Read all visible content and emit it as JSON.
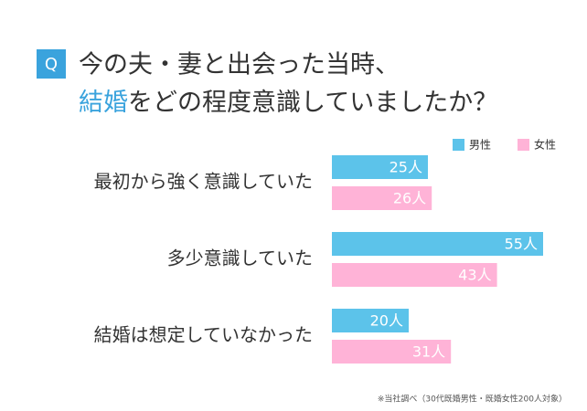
{
  "chart_data": {
    "type": "hbar",
    "badge": "Q",
    "title": [
      "今の夫・妻と出会った当時、",
      "結婚",
      "をどの程度意識していましたか？"
    ],
    "categories": [
      "最初から強く意識していた",
      "多少意識していた",
      "結婚は想定していなかった"
    ],
    "series": [
      {
        "name": "男性",
        "color": "#5cc3ea",
        "values": [
          25,
          55,
          20
        ],
        "value_labels": [
          "25人",
          "55人",
          "20人"
        ]
      },
      {
        "name": "女性",
        "color": "#ffb3d7",
        "values": [
          26,
          43,
          31
        ],
        "value_labels": [
          "26人",
          "43人",
          "31人"
        ]
      }
    ],
    "legend": "top-right",
    "footnote": "※当社調べ（30代既婚男性・既婚女性200人対象）"
  }
}
